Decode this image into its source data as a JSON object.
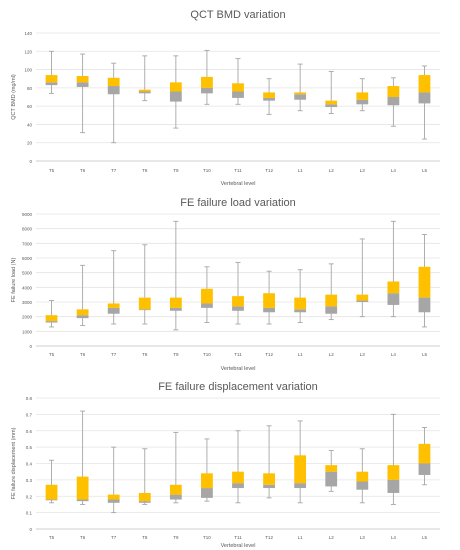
{
  "chart_data": [
    {
      "type": "box",
      "title": "QCT BMD variation",
      "xlabel": "Vertebral level",
      "ylabel": "QCT BMD (mg/ml)",
      "ylim": [
        0,
        140
      ],
      "yticks": [
        0,
        20,
        40,
        60,
        80,
        100,
        120,
        140
      ],
      "categories": [
        "T5",
        "T6",
        "T7",
        "T8",
        "T9",
        "T10",
        "T11",
        "T12",
        "L1",
        "L2",
        "L3",
        "L4",
        "L5"
      ],
      "series": [
        {
          "key": "min",
          "values": [
            74,
            31,
            20,
            66,
            36,
            62,
            62,
            51,
            55,
            52,
            55,
            38,
            24
          ]
        },
        {
          "key": "q1",
          "values": [
            83,
            81,
            73,
            74,
            65,
            74,
            69,
            66,
            67,
            59,
            62,
            61,
            63
          ]
        },
        {
          "key": "median",
          "values": [
            86,
            86,
            82,
            76,
            76,
            80,
            76,
            69,
            73,
            62,
            67,
            70,
            75
          ]
        },
        {
          "key": "q3",
          "values": [
            94,
            93,
            91,
            78,
            86,
            92,
            85,
            75,
            75,
            66,
            75,
            82,
            94
          ]
        },
        {
          "key": "max",
          "values": [
            120,
            117,
            107,
            115,
            115,
            121,
            112,
            90,
            106,
            98,
            90,
            91,
            104
          ]
        }
      ],
      "grid": "horizontal"
    },
    {
      "type": "box",
      "title": "FE failure load variation",
      "xlabel": "Vertebral level",
      "ylabel": "FE failure load (N)",
      "ylim": [
        0,
        9000
      ],
      "yticks": [
        0,
        1000,
        2000,
        3000,
        4000,
        5000,
        6000,
        7000,
        8000,
        9000
      ],
      "categories": [
        "T5",
        "T6",
        "T7",
        "T8",
        "T9",
        "T10",
        "T11",
        "T12",
        "L1",
        "L2",
        "L3",
        "L4",
        "L5"
      ],
      "series": [
        {
          "key": "min",
          "values": [
            1300,
            1400,
            1500,
            1500,
            1100,
            1600,
            1500,
            1500,
            1600,
            1800,
            2000,
            2000,
            1300
          ]
        },
        {
          "key": "q1",
          "values": [
            1600,
            1900,
            2200,
            2500,
            2400,
            2600,
            2400,
            2300,
            2300,
            2200,
            3000,
            2800,
            2300
          ]
        },
        {
          "key": "median",
          "values": [
            1700,
            2100,
            2600,
            2500,
            2600,
            2900,
            2700,
            2600,
            2500,
            2700,
            3100,
            3600,
            3300
          ]
        },
        {
          "key": "q3",
          "values": [
            2100,
            2500,
            2900,
            3300,
            3300,
            3900,
            3400,
            3600,
            3300,
            3500,
            3500,
            4400,
            5400
          ]
        },
        {
          "key": "max",
          "values": [
            3100,
            5500,
            6500,
            6900,
            8500,
            5400,
            5700,
            5100,
            5200,
            5600,
            7300,
            8500,
            7600
          ]
        }
      ],
      "grid": "horizontal"
    },
    {
      "type": "box",
      "title": "FE failure displacement variation",
      "xlabel": "Vertebral level",
      "ylabel": "FE failure displacement (mm)",
      "ylim": [
        0,
        0.8
      ],
      "yticks": [
        0,
        0.1,
        0.2,
        0.3,
        0.4,
        0.5,
        0.6,
        0.7,
        0.8
      ],
      "categories": [
        "T5",
        "T6",
        "T7",
        "T8",
        "T9",
        "T10",
        "T11",
        "T12",
        "L1",
        "L2",
        "L3",
        "L4",
        "L5"
      ],
      "series": [
        {
          "key": "min",
          "values": [
            0.16,
            0.15,
            0.1,
            0.15,
            0.16,
            0.17,
            0.16,
            0.19,
            0.16,
            0.23,
            0.16,
            0.15,
            0.27
          ]
        },
        {
          "key": "q1",
          "values": [
            0.18,
            0.17,
            0.16,
            0.16,
            0.18,
            0.19,
            0.25,
            0.25,
            0.25,
            0.26,
            0.24,
            0.22,
            0.33
          ]
        },
        {
          "key": "median",
          "values": [
            0.18,
            0.18,
            0.18,
            0.17,
            0.21,
            0.25,
            0.28,
            0.27,
            0.28,
            0.35,
            0.29,
            0.3,
            0.4
          ]
        },
        {
          "key": "q3",
          "values": [
            0.27,
            0.32,
            0.21,
            0.22,
            0.27,
            0.34,
            0.35,
            0.34,
            0.45,
            0.39,
            0.35,
            0.39,
            0.52
          ]
        },
        {
          "key": "max",
          "values": [
            0.42,
            0.72,
            0.5,
            0.49,
            0.59,
            0.55,
            0.6,
            0.63,
            0.66,
            0.48,
            0.49,
            0.7,
            0.62
          ]
        }
      ],
      "grid": "horizontal"
    }
  ],
  "colors": {
    "lower_box": "#a6a6a6",
    "upper_box": "#ffc000",
    "whisker": "#a6a6a6",
    "grid": "#e4e4e4",
    "axis": "#bfbfbf",
    "text": "#595959"
  }
}
